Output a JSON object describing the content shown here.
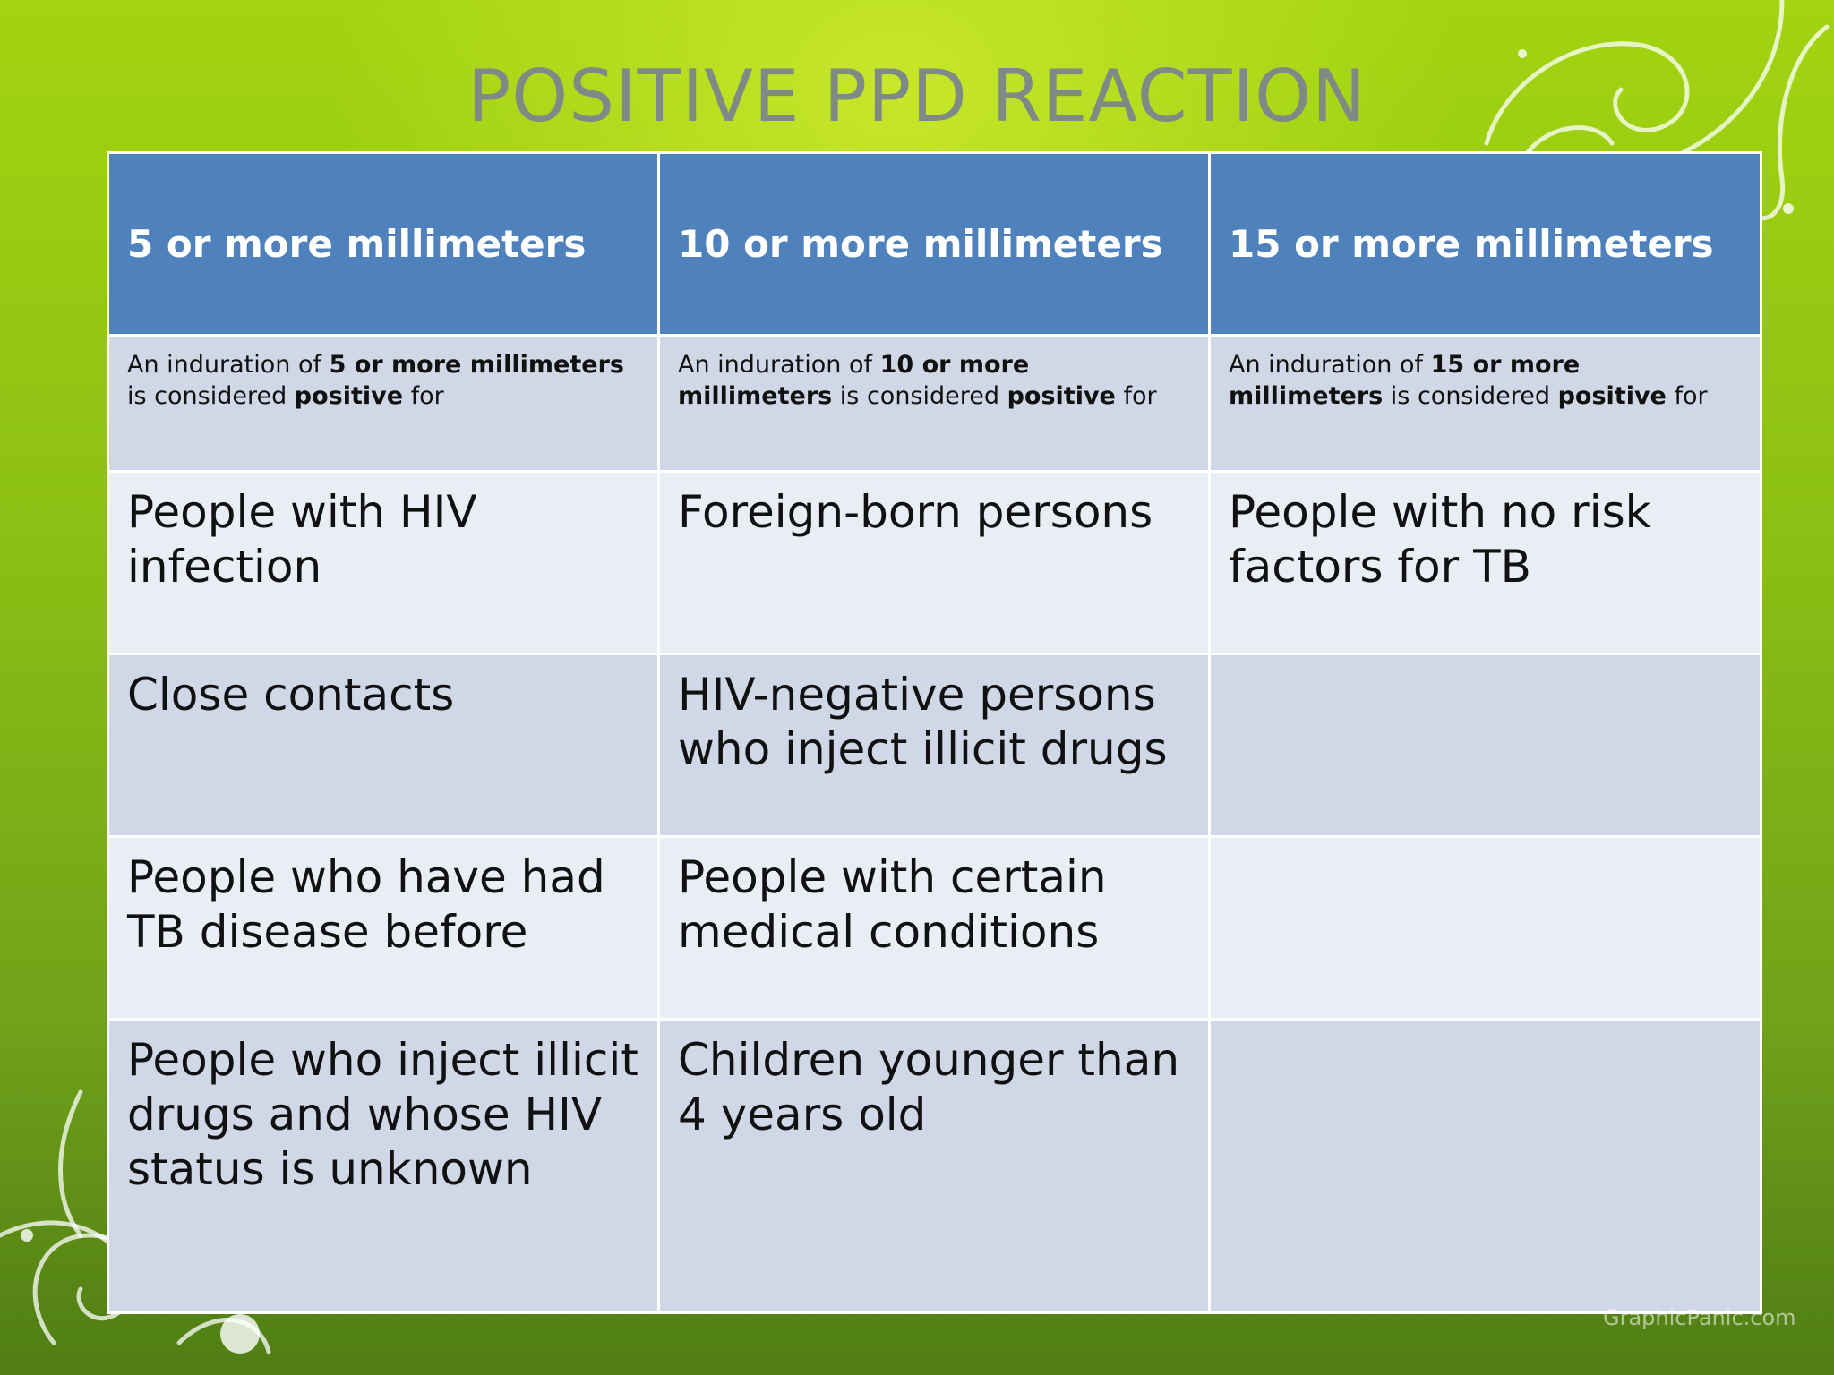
{
  "title": "POSITIVE PPD REACTION",
  "colors": {
    "header_bg": "#4f81bd",
    "row_light": "#e9edf4",
    "row_dark": "#d0d8e8",
    "title_text": "#7f8a86"
  },
  "table": {
    "headers": [
      "5 or more millimeters",
      "10 or more millimeters",
      "15 or more millimeters"
    ],
    "descriptions": [
      {
        "pre": "An induration of ",
        "bold": "5 or more millimeters",
        "mid": " is considered ",
        "bold2": "positive",
        "post": " for"
      },
      {
        "pre": "An induration of ",
        "bold": "10 or more millimeters",
        "mid": " is considered ",
        "bold2": "positive",
        "post": " for"
      },
      {
        "pre": "An induration of ",
        "bold": "15 or more millimeters",
        "mid": " is considered ",
        "bold2": "positive",
        "post": " for"
      }
    ],
    "rows": [
      [
        "People with HIV infection",
        "Foreign-born persons",
        "People with no risk factors for TB"
      ],
      [
        "Close contacts",
        "HIV-negative persons who inject illicit drugs",
        ""
      ],
      [
        "People who have had TB disease before",
        "People with certain medical conditions",
        ""
      ],
      [
        "People who inject illicit drugs and whose HIV status is unknown",
        "Children younger than 4 years old",
        ""
      ]
    ]
  },
  "watermark": "GraphicPanic.com"
}
